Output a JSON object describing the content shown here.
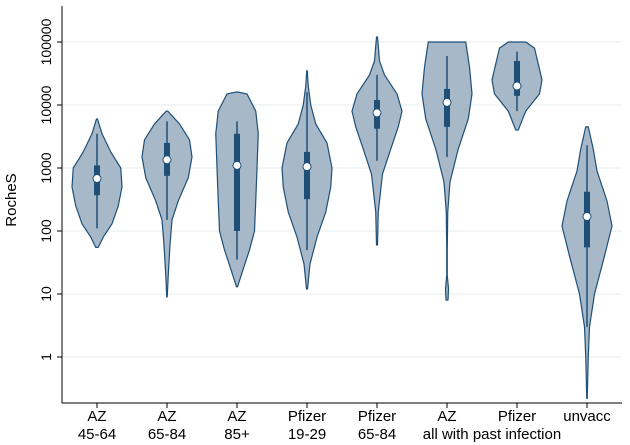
{
  "chart_data": {
    "type": "violin",
    "ylabel": "RocheS",
    "yscale": "log",
    "ylim": [
      0.2,
      60000
    ],
    "yticks": [
      {
        "value": 1,
        "label": "1"
      },
      {
        "value": 10,
        "label": "10"
      },
      {
        "value": 100,
        "label": "100"
      },
      {
        "value": 1000,
        "label": "1000"
      },
      {
        "value": 10000,
        "label": "10000"
      },
      {
        "value": 100000,
        "label": "100000"
      }
    ],
    "categories": [
      {
        "line1": "AZ",
        "line2": "45-64"
      },
      {
        "line1": "AZ",
        "line2": "65-84"
      },
      {
        "line1": "AZ",
        "line2": "85+"
      },
      {
        "line1": "Pfizer",
        "line2": "19-29"
      },
      {
        "line1": "Pfizer",
        "line2": "65-84"
      },
      {
        "line1": "AZ",
        "line2": ""
      },
      {
        "line1": "Pfizer",
        "line2": ""
      },
      {
        "line1": "unvacc",
        "line2": ""
      }
    ],
    "group_label": "all with past infection",
    "colors": {
      "fill": "#a7b8c8",
      "outline": "#1f4f77",
      "grid": "#e6ecef"
    },
    "series": [
      {
        "median": 680,
        "q1": 370,
        "q3": 1100,
        "whisker_low": 110,
        "whisker_high": 3500,
        "shape": [
          [
            55,
            0.05
          ],
          [
            80,
            0.25
          ],
          [
            130,
            0.6
          ],
          [
            250,
            0.85
          ],
          [
            500,
            1.0
          ],
          [
            1000,
            0.95
          ],
          [
            1800,
            0.55
          ],
          [
            3500,
            0.2
          ],
          [
            6000,
            0.02
          ]
        ]
      },
      {
        "median": 1350,
        "q1": 750,
        "q3": 2500,
        "whisker_low": 150,
        "whisker_high": 5500,
        "shape": [
          [
            9,
            0.01
          ],
          [
            20,
            0.05
          ],
          [
            60,
            0.12
          ],
          [
            150,
            0.2
          ],
          [
            300,
            0.45
          ],
          [
            700,
            0.85
          ],
          [
            1500,
            1.0
          ],
          [
            2800,
            0.9
          ],
          [
            5000,
            0.5
          ],
          [
            8000,
            0.03
          ]
        ]
      },
      {
        "median": 1100,
        "q1": 100,
        "q3": 3500,
        "whisker_low": 35,
        "whisker_high": 5500,
        "shape": [
          [
            13,
            0.02
          ],
          [
            25,
            0.25
          ],
          [
            50,
            0.5
          ],
          [
            100,
            0.7
          ],
          [
            300,
            0.75
          ],
          [
            1000,
            0.8
          ],
          [
            3500,
            0.85
          ],
          [
            8000,
            0.75
          ],
          [
            15000,
            0.4
          ],
          [
            16000,
            0.05
          ]
        ]
      },
      {
        "median": 1050,
        "q1": 320,
        "q3": 1800,
        "whisker_low": 50,
        "whisker_high": 16000,
        "shape": [
          [
            12,
            0.02
          ],
          [
            30,
            0.12
          ],
          [
            80,
            0.4
          ],
          [
            200,
            0.75
          ],
          [
            500,
            0.95
          ],
          [
            1000,
            1.0
          ],
          [
            2500,
            0.8
          ],
          [
            5000,
            0.35
          ],
          [
            10000,
            0.15
          ],
          [
            20000,
            0.05
          ],
          [
            35000,
            0.01
          ]
        ]
      },
      {
        "median": 7500,
        "q1": 4200,
        "q3": 12000,
        "whisker_low": 1300,
        "whisker_high": 30000,
        "shape": [
          [
            60,
            0.02
          ],
          [
            200,
            0.05
          ],
          [
            800,
            0.22
          ],
          [
            2000,
            0.55
          ],
          [
            4500,
            0.85
          ],
          [
            8000,
            1.0
          ],
          [
            15000,
            0.8
          ],
          [
            30000,
            0.3
          ],
          [
            50000,
            0.1
          ],
          [
            120000,
            0.02
          ]
        ]
      },
      {
        "median": 11000,
        "q1": 4500,
        "q3": 18000,
        "whisker_low": 1500,
        "whisker_high": 60000,
        "shape": [
          [
            8,
            0.04
          ],
          [
            12,
            0.06
          ],
          [
            20,
            0.01
          ],
          [
            50,
            0.01
          ],
          [
            200,
            0.03
          ],
          [
            600,
            0.12
          ],
          [
            2000,
            0.45
          ],
          [
            6000,
            0.85
          ],
          [
            15000,
            1.0
          ],
          [
            40000,
            0.9
          ],
          [
            100000,
            0.75
          ]
        ]
      },
      {
        "median": 20000,
        "q1": 14000,
        "q3": 50000,
        "whisker_low": 8000,
        "whisker_high": 70000,
        "shape": [
          [
            4000,
            0.05
          ],
          [
            8000,
            0.35
          ],
          [
            15000,
            0.9
          ],
          [
            25000,
            1.0
          ],
          [
            45000,
            0.85
          ],
          [
            80000,
            0.7
          ],
          [
            100000,
            0.35
          ]
        ]
      },
      {
        "median": 170,
        "q1": 55,
        "q3": 420,
        "whisker_low": 3,
        "whisker_high": 2300,
        "shape": [
          [
            0.22,
            0.01
          ],
          [
            1,
            0.05
          ],
          [
            3,
            0.1
          ],
          [
            10,
            0.3
          ],
          [
            40,
            0.7
          ],
          [
            120,
            1.0
          ],
          [
            300,
            0.8
          ],
          [
            900,
            0.4
          ],
          [
            2000,
            0.25
          ],
          [
            4500,
            0.05
          ]
        ]
      }
    ]
  }
}
